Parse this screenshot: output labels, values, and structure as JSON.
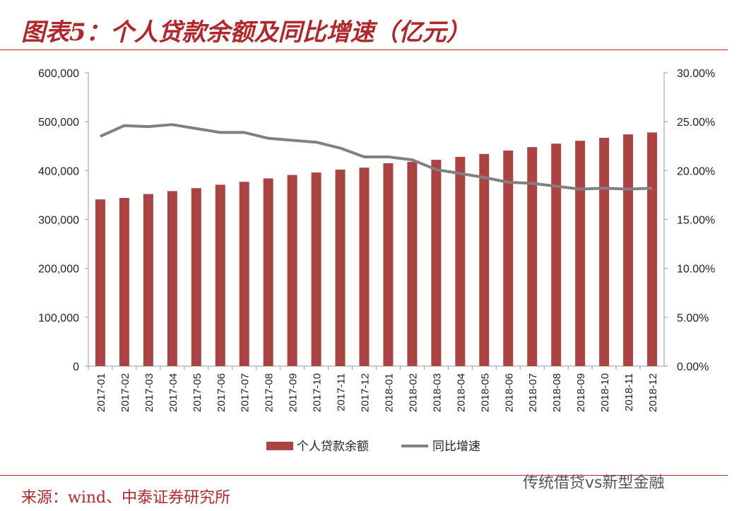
{
  "title": "图表5：个人贷款余额及同比增速（亿元）",
  "source": "来源：wind、中泰证券研究所",
  "watermark": "传统借贷vs新型金融",
  "colors": {
    "bar": "#a94442",
    "line": "#808080",
    "accent": "#b0282c"
  },
  "chart_data": {
    "type": "bar+line",
    "categories": [
      "2017-01",
      "2017-02",
      "2017-03",
      "2017-04",
      "2017-05",
      "2017-06",
      "2017-07",
      "2017-08",
      "2017-09",
      "2017-10",
      "2017-11",
      "2017-12",
      "2018-01",
      "2018-02",
      "2018-03",
      "2018-04",
      "2018-05",
      "2018-06",
      "2018-07",
      "2018-08",
      "2018-09",
      "2018-10",
      "2018-11",
      "2018-12"
    ],
    "series": [
      {
        "name": "个人贷款余额",
        "type": "bar",
        "axis": "left",
        "values": [
          341000,
          344000,
          352000,
          358000,
          364000,
          371000,
          377000,
          384000,
          391000,
          396000,
          402000,
          406000,
          415000,
          418000,
          422000,
          428000,
          434000,
          441000,
          448000,
          455000,
          461000,
          467000,
          474000,
          478000
        ]
      },
      {
        "name": "同比增速",
        "type": "line",
        "axis": "right",
        "values": [
          23.5,
          24.6,
          24.5,
          24.7,
          24.3,
          23.9,
          23.9,
          23.3,
          23.1,
          22.9,
          22.3,
          21.4,
          21.4,
          21.1,
          20.1,
          19.7,
          19.3,
          18.8,
          18.7,
          18.4,
          18.1,
          18.2,
          18.1,
          18.2
        ]
      }
    ],
    "left_ylim": [
      0,
      600000
    ],
    "right_ylim": [
      0,
      30
    ],
    "left_ticks": [
      "0",
      "100,000",
      "200,000",
      "300,000",
      "400,000",
      "500,000",
      "600,000"
    ],
    "right_ticks": [
      "0.00%",
      "5.00%",
      "10.00%",
      "15.00%",
      "20.00%",
      "25.00%",
      "30.00%"
    ],
    "grid": false,
    "legend": "bottom"
  }
}
